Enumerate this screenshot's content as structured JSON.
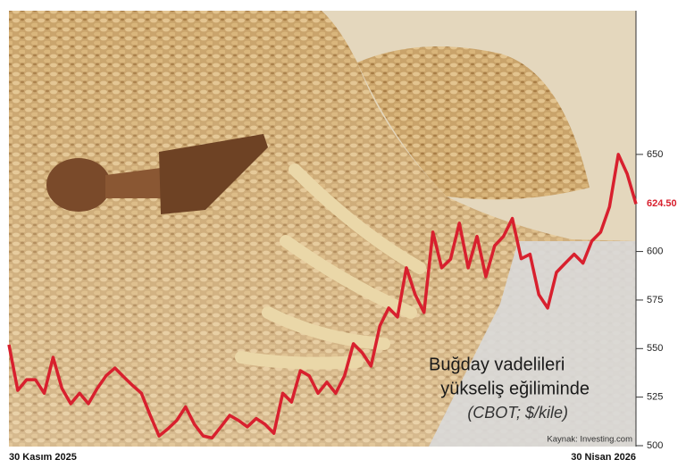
{
  "chart_data": {
    "type": "line",
    "annotation": [
      "Buğday vadelileri",
      "yükseliş eğiliminde"
    ],
    "subtitle": "(CBOT; $/kile)",
    "source": "Kaynak: Investing.com",
    "categories": [
      "30 Kasım 2025",
      null,
      null,
      null,
      null,
      null,
      null,
      null,
      null,
      null,
      null,
      null,
      null,
      null,
      null,
      null,
      null,
      null,
      null,
      null,
      null,
      null,
      null,
      null,
      null,
      null,
      null,
      null,
      null,
      null,
      null,
      null,
      null,
      null,
      null,
      null,
      null,
      null,
      null,
      null,
      null,
      null,
      null,
      null,
      null,
      null,
      null,
      null,
      null,
      null,
      null,
      null,
      null,
      null,
      null,
      null,
      null,
      null,
      null,
      null,
      null,
      null,
      null,
      null,
      null,
      null,
      null,
      null,
      null,
      null,
      null,
      "30 Nisan 2026"
    ],
    "series": [
      {
        "name": null,
        "color": "#d8202e",
        "values": [
          552,
          528.5,
          534,
          534,
          527,
          545.5,
          529.5,
          521.6,
          527,
          521.6,
          529.5,
          536,
          540,
          535.4,
          531,
          527,
          515.6,
          505,
          508.7,
          513,
          520,
          511,
          505,
          504,
          509.7,
          515.6,
          513,
          509.7,
          514,
          511,
          506.4,
          527,
          522.5,
          538.6,
          536,
          527,
          532.7,
          527,
          536,
          552.5,
          547.9,
          541,
          561.7,
          570.9,
          566.3,
          591.6,
          577.8,
          568.6,
          610,
          591.6,
          596,
          614.6,
          591.6,
          607.8,
          587,
          603,
          607.8,
          617,
          596.3,
          598.6,
          577.8,
          570.9,
          589.3,
          594,
          598.6,
          594,
          605.4,
          610,
          623,
          650,
          640,
          624.5
        ],
        "value_labels": [
          null,
          null,
          null,
          null,
          null,
          null,
          null,
          null,
          null,
          null,
          null,
          null,
          null,
          null,
          null,
          null,
          null,
          null,
          null,
          null,
          null,
          null,
          null,
          null,
          null,
          null,
          null,
          null,
          null,
          null,
          null,
          null,
          null,
          null,
          null,
          null,
          null,
          null,
          null,
          null,
          null,
          null,
          null,
          null,
          null,
          null,
          null,
          null,
          null,
          null,
          null,
          null,
          null,
          null,
          null,
          null,
          null,
          null,
          null,
          null,
          null,
          null,
          null,
          null,
          null,
          null,
          null,
          null,
          null,
          null,
          null,
          "624.50"
        ]
      }
    ],
    "ylim": [
      500,
      724
    ],
    "yticks": [
      500,
      525,
      550,
      575,
      600,
      650
    ],
    "y_axis_side": "right"
  }
}
